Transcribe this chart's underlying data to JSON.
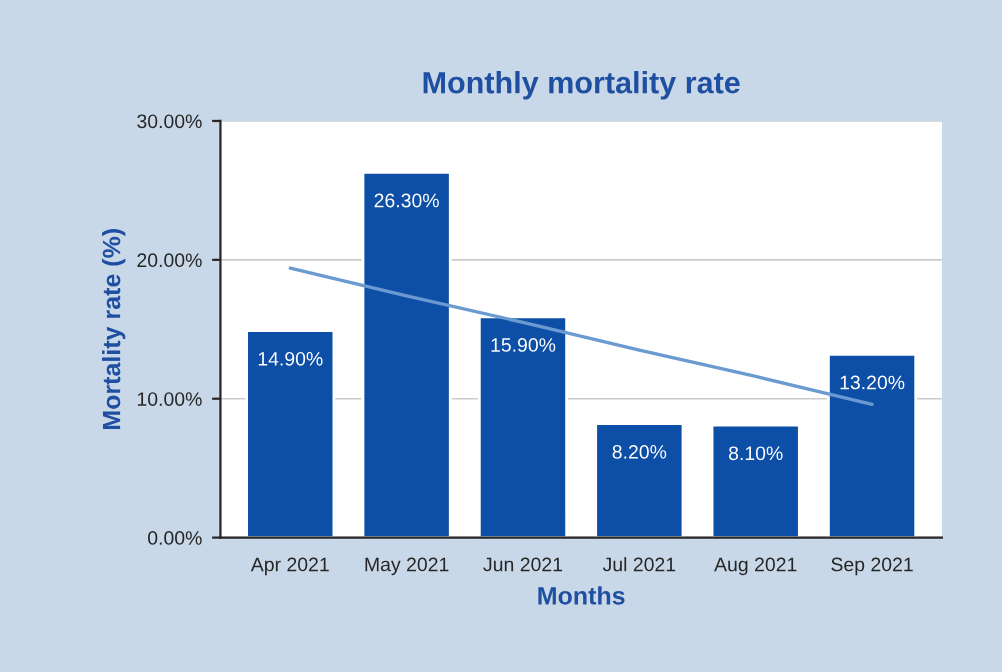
{
  "chart_data": {
    "type": "bar",
    "title": "Monthly mortality rate",
    "xlabel": "Months",
    "ylabel": "Mortality rate (%)",
    "categories": [
      "Apr 2021",
      "May 2021",
      "Jun 2021",
      "Jul 2021",
      "Aug 2021",
      "Sep 2021"
    ],
    "series": [
      {
        "color": "#0d4ea6",
        "values": [
          14.9,
          26.3,
          15.9,
          8.2,
          8.1,
          13.2
        ],
        "value_labels": [
          "14.90%",
          "26.30%",
          "15.90%",
          "8.20%",
          "8.10%",
          "13.20%"
        ]
      },
      {
        "type": "line",
        "color": "#6a9ad0",
        "values": [
          19.4,
          17.4,
          15.5,
          13.5,
          11.6,
          9.6
        ]
      }
    ],
    "ylim": [
      0,
      30
    ],
    "yticks": [
      {
        "value": 0,
        "label": "0.00%"
      },
      {
        "value": 10,
        "label": "10.00%"
      },
      {
        "value": 20,
        "label": "20.00%"
      },
      {
        "value": 30,
        "label": "30.00%"
      }
    ],
    "grid": "y"
  }
}
